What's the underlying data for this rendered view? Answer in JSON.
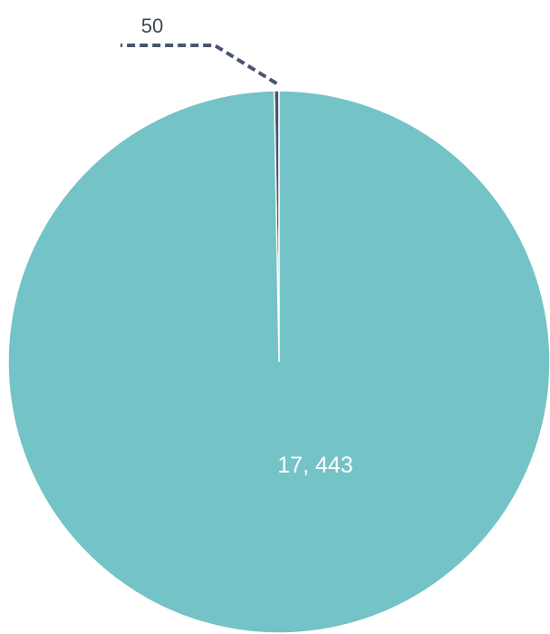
{
  "chart_data": {
    "type": "pie",
    "slices": [
      {
        "label": "50",
        "value": 50,
        "color": "#4a5570"
      },
      {
        "label": "17, 443",
        "value": 17443,
        "color": "#74c3c7"
      }
    ],
    "title": "",
    "legend": "none"
  }
}
